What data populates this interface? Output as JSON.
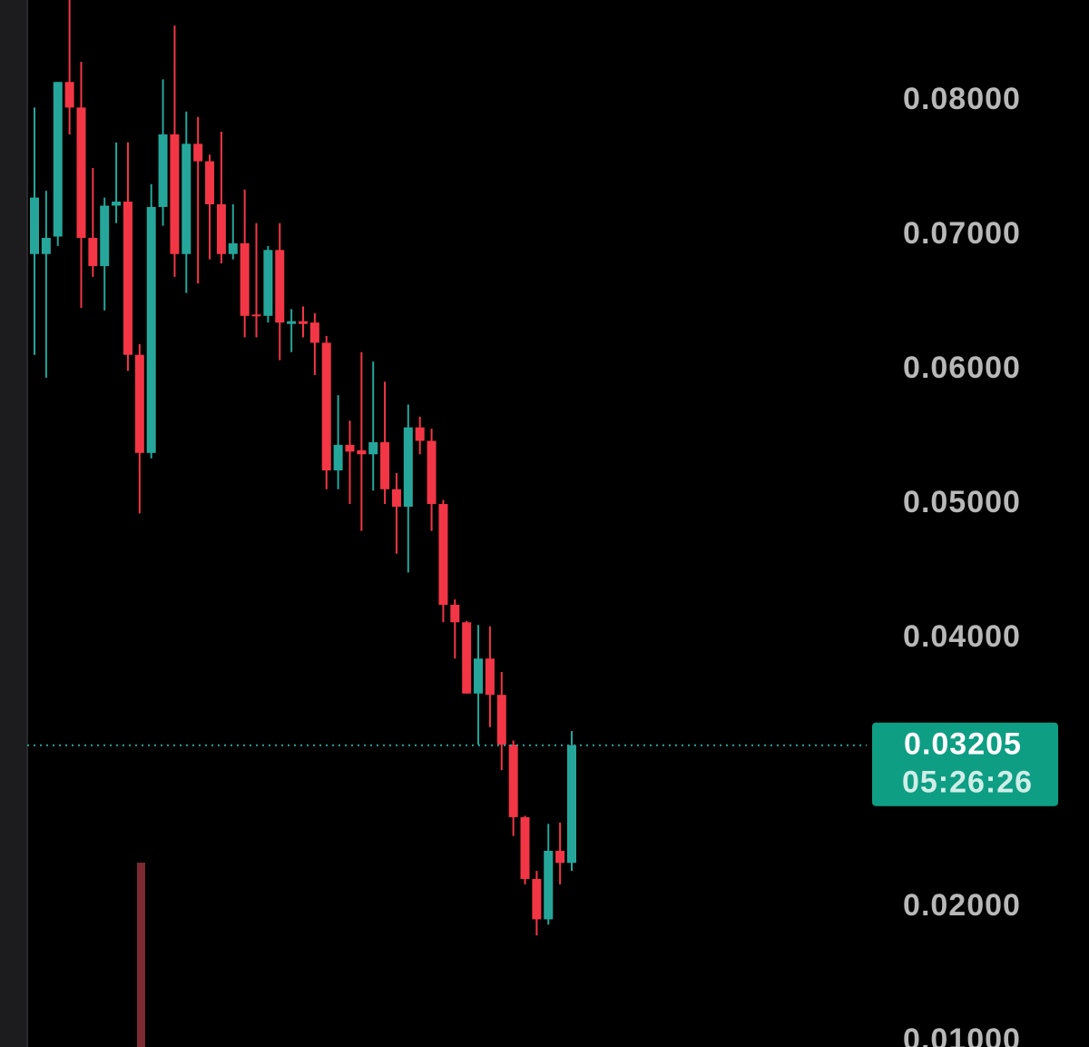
{
  "chart_data": {
    "type": "candlestick",
    "up_color": "#26a69a",
    "down_color": "#f23645",
    "open": [
      0.0686,
      0.0686,
      0.0699,
      0.0814,
      0.0795,
      0.0698,
      0.0677,
      0.0722,
      0.0725,
      0.0611,
      0.0538,
      0.0721,
      0.0775,
      0.0686,
      0.0768,
      0.0755,
      0.0723,
      0.0686,
      0.0694,
      0.0641,
      0.064,
      0.0689,
      0.0634,
      0.0636,
      0.0635,
      0.062,
      0.0525,
      0.0544,
      0.054,
      0.0537,
      0.0546,
      0.0511,
      0.0498,
      0.0557,
      0.0547,
      0.05,
      0.0425,
      0.0412,
      0.0359,
      0.0385,
      0.0358,
      0.0321,
      0.0267,
      0.0221,
      0.0191,
      0.0242,
      0.0233
    ],
    "high": [
      0.0795,
      0.0733,
      0.0814,
      0.0875,
      0.0829,
      0.075,
      0.0728,
      0.0769,
      0.0769,
      0.0619,
      0.0738,
      0.0816,
      0.0856,
      0.0792,
      0.0788,
      0.076,
      0.0777,
      0.0723,
      0.0734,
      0.0709,
      0.0692,
      0.0709,
      0.0645,
      0.0647,
      0.0642,
      0.0625,
      0.0581,
      0.0562,
      0.0613,
      0.0606,
      0.0591,
      0.0523,
      0.0574,
      0.0565,
      0.0556,
      0.0503,
      0.0429,
      0.0413,
      0.041,
      0.0409,
      0.0375,
      0.0324,
      0.0268,
      0.0227,
      0.0262,
      0.0263,
      0.0331
    ],
    "low": [
      0.0611,
      0.0594,
      0.0692,
      0.0775,
      0.0646,
      0.0669,
      0.0644,
      0.0709,
      0.0599,
      0.0493,
      0.0534,
      0.0707,
      0.0669,
      0.0657,
      0.0664,
      0.0682,
      0.0679,
      0.0682,
      0.0624,
      0.0624,
      0.0635,
      0.0607,
      0.0613,
      0.0624,
      0.0596,
      0.0511,
      0.0511,
      0.05,
      0.048,
      0.051,
      0.05,
      0.0463,
      0.0449,
      0.0537,
      0.048,
      0.0412,
      0.0385,
      0.0359,
      0.0321,
      0.0334,
      0.0302,
      0.0253,
      0.0217,
      0.0179,
      0.0187,
      0.0217,
      0.0227
    ],
    "close": [
      0.0728,
      0.0698,
      0.0814,
      0.0795,
      0.0698,
      0.0677,
      0.0722,
      0.0725,
      0.0611,
      0.0538,
      0.0721,
      0.0775,
      0.0686,
      0.0768,
      0.0755,
      0.0723,
      0.0686,
      0.0694,
      0.064,
      0.064,
      0.0689,
      0.0635,
      0.0636,
      0.0634,
      0.062,
      0.0525,
      0.0544,
      0.0539,
      0.0537,
      0.0546,
      0.0511,
      0.0498,
      0.0557,
      0.0547,
      0.05,
      0.0425,
      0.0412,
      0.0359,
      0.0385,
      0.0358,
      0.0321,
      0.0267,
      0.0221,
      0.0191,
      0.0242,
      0.0233,
      0.03205
    ],
    "ylim": [
      0.0096,
      0.0875
    ],
    "yticks": [
      {
        "value": 0.08,
        "label": "0.08000"
      },
      {
        "value": 0.07,
        "label": "0.07000"
      },
      {
        "value": 0.06,
        "label": "0.06000"
      },
      {
        "value": 0.05,
        "label": "0.05000"
      },
      {
        "value": 0.04,
        "label": "0.04000"
      },
      {
        "value": 0.02,
        "label": "0.02000"
      },
      {
        "value": 0.01,
        "label": "0.01000"
      }
    ],
    "last_price": 0.03205,
    "countdown": "05:26:26"
  }
}
